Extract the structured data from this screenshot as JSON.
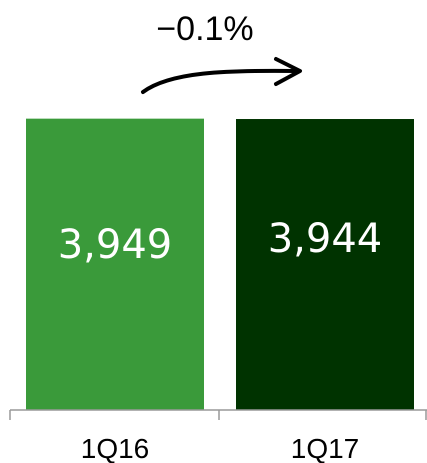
{
  "chart_data": {
    "type": "bar",
    "categories": [
      "1Q16",
      "1Q17"
    ],
    "values": [
      3949,
      3944
    ],
    "value_labels": [
      "3,949",
      "3,944"
    ],
    "ylim": [
      0,
      4500
    ],
    "title": "",
    "xlabel": "",
    "ylabel": "",
    "grid": false,
    "change_annotation": "−0.1%",
    "bar_colors": [
      "#3a9a3a",
      "#003300"
    ]
  }
}
